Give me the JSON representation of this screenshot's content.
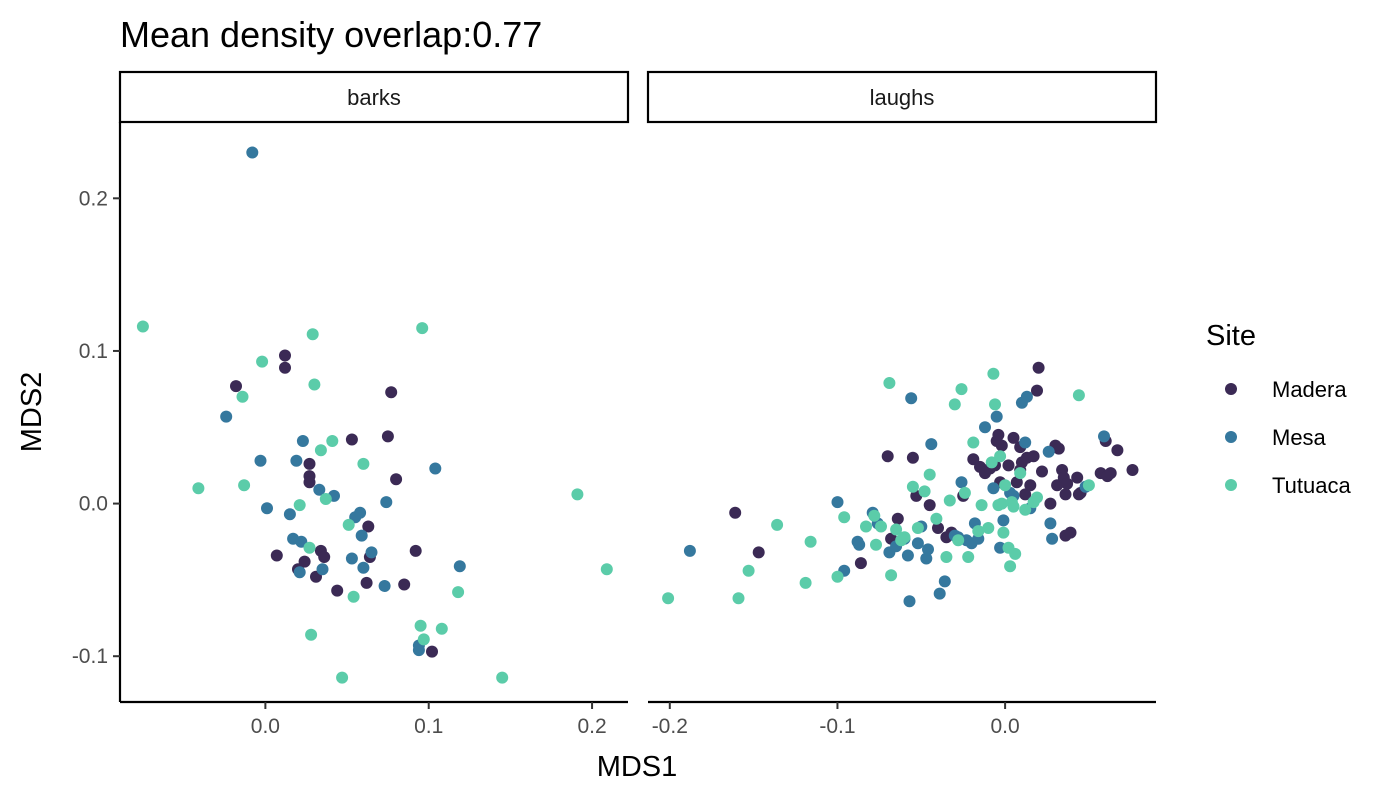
{
  "chart_data": {
    "type": "scatter",
    "title": "Mean density overlap:0.77",
    "xlabel": "MDS1",
    "ylabel": "MDS2",
    "ylim": [
      -0.13,
      0.25
    ],
    "yticks": [
      -0.1,
      0.0,
      0.1,
      0.2
    ],
    "ytick_labels": [
      "-0.1",
      "0.0",
      "0.1",
      "0.2"
    ],
    "grid": false,
    "legend": {
      "title": "Site",
      "position": "right",
      "entries": [
        "Madera",
        "Mesa",
        "Tutuaca"
      ]
    },
    "colors": {
      "Madera": "#3b2a55",
      "Mesa": "#35789e",
      "Tutuaca": "#5bcca9"
    },
    "panels": [
      {
        "label": "barks",
        "xlim": [
          -0.089,
          0.222
        ],
        "xticks": [
          0.0,
          0.1,
          0.2
        ],
        "xtick_labels": [
          "0.0",
          "0.1",
          "0.2"
        ],
        "series": [
          {
            "name": "Madera",
            "points": [
              [
                -0.018,
                0.077
              ],
              [
                0.012,
                0.097
              ],
              [
                0.012,
                0.089
              ],
              [
                0.007,
                -0.034
              ],
              [
                0.02,
                -0.043
              ],
              [
                0.024,
                -0.038
              ],
              [
                0.027,
                0.026
              ],
              [
                0.027,
                0.018
              ],
              [
                0.027,
                0.014
              ],
              [
                0.031,
                -0.048
              ],
              [
                0.034,
                -0.031
              ],
              [
                0.036,
                -0.035
              ],
              [
                0.044,
                -0.057
              ],
              [
                0.053,
                0.042
              ],
              [
                0.062,
                -0.052
              ],
              [
                0.063,
                -0.015
              ],
              [
                0.064,
                -0.035
              ],
              [
                0.075,
                0.044
              ],
              [
                0.077,
                0.073
              ],
              [
                0.08,
                0.016
              ],
              [
                0.085,
                -0.053
              ],
              [
                0.092,
                -0.031
              ],
              [
                0.102,
                -0.097
              ]
            ]
          },
          {
            "name": "Mesa",
            "points": [
              [
                -0.008,
                0.23
              ],
              [
                -0.024,
                0.057
              ],
              [
                -0.003,
                0.028
              ],
              [
                0.001,
                -0.003
              ],
              [
                0.015,
                -0.007
              ],
              [
                0.017,
                -0.023
              ],
              [
                0.019,
                0.028
              ],
              [
                0.021,
                -0.045
              ],
              [
                0.022,
                -0.025
              ],
              [
                0.023,
                0.041
              ],
              [
                0.033,
                0.009
              ],
              [
                0.035,
                -0.043
              ],
              [
                0.042,
                0.005
              ],
              [
                0.053,
                -0.036
              ],
              [
                0.055,
                -0.009
              ],
              [
                0.058,
                -0.006
              ],
              [
                0.059,
                -0.021
              ],
              [
                0.06,
                -0.042
              ],
              [
                0.065,
                -0.032
              ],
              [
                0.073,
                -0.054
              ],
              [
                0.074,
                0.001
              ],
              [
                0.094,
                -0.093
              ],
              [
                0.094,
                -0.096
              ],
              [
                0.104,
                0.023
              ],
              [
                0.119,
                -0.041
              ]
            ]
          },
          {
            "name": "Tutuaca",
            "points": [
              [
                -0.075,
                0.116
              ],
              [
                -0.041,
                0.01
              ],
              [
                -0.014,
                0.07
              ],
              [
                -0.013,
                0.012
              ],
              [
                -0.002,
                0.093
              ],
              [
                0.021,
                -0.001
              ],
              [
                0.027,
                -0.029
              ],
              [
                0.028,
                -0.086
              ],
              [
                0.029,
                0.111
              ],
              [
                0.03,
                0.078
              ],
              [
                0.034,
                0.035
              ],
              [
                0.037,
                0.003
              ],
              [
                0.041,
                0.041
              ],
              [
                0.047,
                -0.114
              ],
              [
                0.051,
                -0.014
              ],
              [
                0.054,
                -0.061
              ],
              [
                0.06,
                0.026
              ],
              [
                0.095,
                -0.08
              ],
              [
                0.096,
                0.115
              ],
              [
                0.097,
                -0.089
              ],
              [
                0.108,
                -0.082
              ],
              [
                0.118,
                -0.058
              ],
              [
                0.145,
                -0.114
              ],
              [
                0.191,
                0.006
              ],
              [
                0.209,
                -0.043
              ]
            ]
          }
        ]
      },
      {
        "label": "laughs",
        "xlim": [
          -0.213,
          0.09
        ],
        "xticks": [
          -0.2,
          -0.1,
          0.0
        ],
        "xtick_labels": [
          "-0.2",
          "-0.1",
          "0.0"
        ],
        "series": [
          {
            "name": "Madera",
            "points": [
              [
                -0.161,
                -0.006
              ],
              [
                -0.147,
                -0.032
              ],
              [
                -0.086,
                -0.039
              ],
              [
                -0.07,
                0.031
              ],
              [
                -0.068,
                -0.023
              ],
              [
                -0.064,
                -0.01
              ],
              [
                -0.055,
                0.03
              ],
              [
                -0.053,
                0.005
              ],
              [
                -0.045,
                -0.001
              ],
              [
                -0.04,
                -0.016
              ],
              [
                -0.035,
                -0.022
              ],
              [
                -0.032,
                -0.019
              ],
              [
                -0.025,
                0.005
              ],
              [
                -0.019,
                0.029
              ],
              [
                -0.015,
                0.024
              ],
              [
                -0.012,
                0.02
              ],
              [
                -0.009,
                0.023
              ],
              [
                -0.006,
                0.025
              ],
              [
                -0.005,
                0.041
              ],
              [
                -0.004,
                0.045
              ],
              [
                -0.003,
                0.014
              ],
              [
                -0.002,
                0.038
              ],
              [
                0.002,
                0.025
              ],
              [
                0.005,
                0.043
              ],
              [
                0.007,
                0.014
              ],
              [
                0.009,
                0.037
              ],
              [
                0.009,
                0.022
              ],
              [
                0.01,
                0.027
              ],
              [
                0.012,
                0.006
              ],
              [
                0.013,
                0.03
              ],
              [
                0.015,
                0.012
              ],
              [
                0.017,
                0.031
              ],
              [
                0.019,
                0.074
              ],
              [
                0.02,
                0.089
              ],
              [
                0.022,
                0.021
              ],
              [
                0.027,
                0.0
              ],
              [
                0.03,
                0.038
              ],
              [
                0.031,
                0.012
              ],
              [
                0.032,
                0.036
              ],
              [
                0.034,
                0.022
              ],
              [
                0.035,
                0.017
              ],
              [
                0.036,
                0.006
              ],
              [
                0.036,
                -0.021
              ],
              [
                0.037,
                0.013
              ],
              [
                0.039,
                -0.019
              ],
              [
                0.043,
                0.017
              ],
              [
                0.044,
                0.006
              ],
              [
                0.045,
                0.007
              ],
              [
                0.057,
                0.02
              ],
              [
                0.06,
                0.041
              ],
              [
                0.061,
                0.018
              ],
              [
                0.063,
                0.02
              ],
              [
                0.067,
                0.035
              ],
              [
                0.076,
                0.022
              ]
            ]
          },
          {
            "name": "Mesa",
            "points": [
              [
                -0.188,
                -0.031
              ],
              [
                -0.1,
                0.001
              ],
              [
                -0.096,
                -0.044
              ],
              [
                -0.088,
                -0.025
              ],
              [
                -0.087,
                -0.027
              ],
              [
                -0.079,
                -0.006
              ],
              [
                -0.076,
                -0.013
              ],
              [
                -0.069,
                -0.032
              ],
              [
                -0.065,
                -0.028
              ],
              [
                -0.06,
                -0.023
              ],
              [
                -0.058,
                -0.034
              ],
              [
                -0.057,
                -0.064
              ],
              [
                -0.056,
                0.069
              ],
              [
                -0.052,
                -0.026
              ],
              [
                -0.05,
                -0.015
              ],
              [
                -0.047,
                -0.036
              ],
              [
                -0.046,
                -0.03
              ],
              [
                -0.044,
                0.039
              ],
              [
                -0.039,
                -0.059
              ],
              [
                -0.036,
                -0.051
              ],
              [
                -0.03,
                -0.021
              ],
              [
                -0.028,
                -0.022
              ],
              [
                -0.026,
                0.014
              ],
              [
                -0.023,
                -0.024
              ],
              [
                -0.02,
                -0.026
              ],
              [
                -0.018,
                -0.013
              ],
              [
                -0.016,
                -0.023
              ],
              [
                -0.012,
                0.05
              ],
              [
                -0.007,
                0.01
              ],
              [
                -0.005,
                0.057
              ],
              [
                -0.003,
                -0.029
              ],
              [
                -0.001,
                -0.011
              ],
              [
                0.003,
                0.007
              ],
              [
                0.005,
                0.005
              ],
              [
                0.01,
                0.066
              ],
              [
                0.012,
                0.04
              ],
              [
                0.013,
                0.07
              ],
              [
                0.015,
                -0.003
              ],
              [
                0.026,
                0.034
              ],
              [
                0.027,
                -0.013
              ],
              [
                0.028,
                -0.023
              ],
              [
                0.048,
                0.011
              ],
              [
                0.059,
                0.044
              ]
            ]
          },
          {
            "name": "Tutuaca",
            "points": [
              [
                -0.201,
                -0.062
              ],
              [
                -0.159,
                -0.062
              ],
              [
                -0.153,
                -0.044
              ],
              [
                -0.136,
                -0.014
              ],
              [
                -0.119,
                -0.052
              ],
              [
                -0.116,
                -0.025
              ],
              [
                -0.1,
                -0.048
              ],
              [
                -0.096,
                -0.009
              ],
              [
                -0.083,
                -0.015
              ],
              [
                -0.078,
                -0.008
              ],
              [
                -0.077,
                -0.027
              ],
              [
                -0.074,
                -0.015
              ],
              [
                -0.069,
                0.079
              ],
              [
                -0.068,
                -0.047
              ],
              [
                -0.065,
                -0.017
              ],
              [
                -0.062,
                -0.024
              ],
              [
                -0.06,
                -0.022
              ],
              [
                -0.055,
                0.011
              ],
              [
                -0.052,
                -0.016
              ],
              [
                -0.048,
                0.008
              ],
              [
                -0.045,
                0.019
              ],
              [
                -0.041,
                -0.01
              ],
              [
                -0.035,
                -0.035
              ],
              [
                -0.033,
                0.002
              ],
              [
                -0.03,
                0.065
              ],
              [
                -0.028,
                -0.024
              ],
              [
                -0.026,
                0.075
              ],
              [
                -0.024,
                0.007
              ],
              [
                -0.022,
                -0.035
              ],
              [
                -0.019,
                0.04
              ],
              [
                -0.016,
                -0.018
              ],
              [
                -0.014,
                -0.001
              ],
              [
                -0.01,
                -0.016
              ],
              [
                -0.008,
                0.027
              ],
              [
                -0.007,
                0.085
              ],
              [
                -0.006,
                0.065
              ],
              [
                -0.004,
                -0.001
              ],
              [
                -0.003,
                0.031
              ],
              [
                -0.002,
                0.0
              ],
              [
                -0.001,
                -0.019
              ],
              [
                0.0,
                0.012
              ],
              [
                0.002,
                -0.029
              ],
              [
                0.003,
                -0.041
              ],
              [
                0.004,
                0.001
              ],
              [
                0.005,
                -0.002
              ],
              [
                0.006,
                -0.033
              ],
              [
                0.009,
                0.02
              ],
              [
                0.012,
                -0.004
              ],
              [
                0.017,
                0.001
              ],
              [
                0.019,
                0.004
              ],
              [
                0.044,
                0.071
              ],
              [
                0.05,
                0.012
              ]
            ]
          }
        ]
      }
    ]
  }
}
